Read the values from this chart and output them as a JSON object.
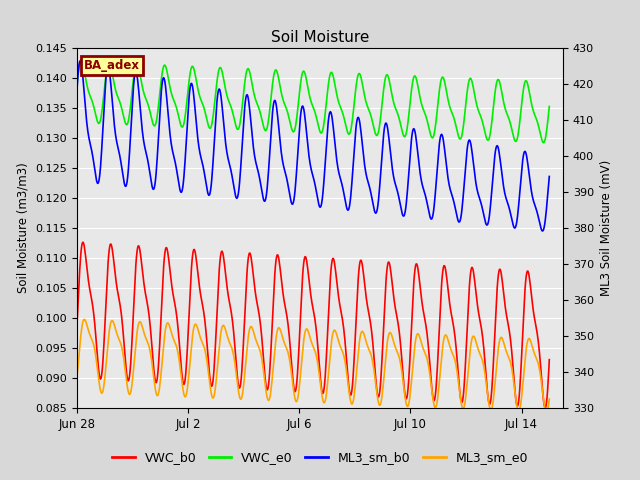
{
  "title": "Soil Moisture",
  "ylabel_left": "Soil Moisture (m3/m3)",
  "ylabel_right": "ML3 Soil Moisture (mV)",
  "ylim_left": [
    0.085,
    0.145
  ],
  "ylim_right": [
    330,
    430
  ],
  "yticks_left": [
    0.085,
    0.09,
    0.095,
    0.1,
    0.105,
    0.11,
    0.115,
    0.12,
    0.125,
    0.13,
    0.135,
    0.14,
    0.145
  ],
  "yticks_right": [
    330,
    340,
    350,
    360,
    370,
    380,
    390,
    400,
    410,
    420,
    430
  ],
  "xtick_labels": [
    "Jun 28",
    "Jul 2",
    "Jul 6",
    "Jul 10",
    "Jul 14"
  ],
  "xtick_positions": [
    0,
    4,
    8,
    12,
    16
  ],
  "xlim": [
    0,
    17.5
  ],
  "annotation_text": "BA_adex",
  "annotation_bg": "#FFFF99",
  "annotation_border": "#8B0000",
  "annotation_text_color": "#8B0000",
  "fig_bg_color": "#D8D8D8",
  "plot_bg_color": "#E8E8E8",
  "grid_color": "#FFFFFF",
  "legend_entries": [
    "VWC_b0",
    "VWC_e0",
    "ML3_sm_b0",
    "ML3_sm_e0"
  ],
  "line_colors": [
    "#FF0000",
    "#00EE00",
    "#0000FF",
    "#FFA500"
  ],
  "line_width": 1.2
}
